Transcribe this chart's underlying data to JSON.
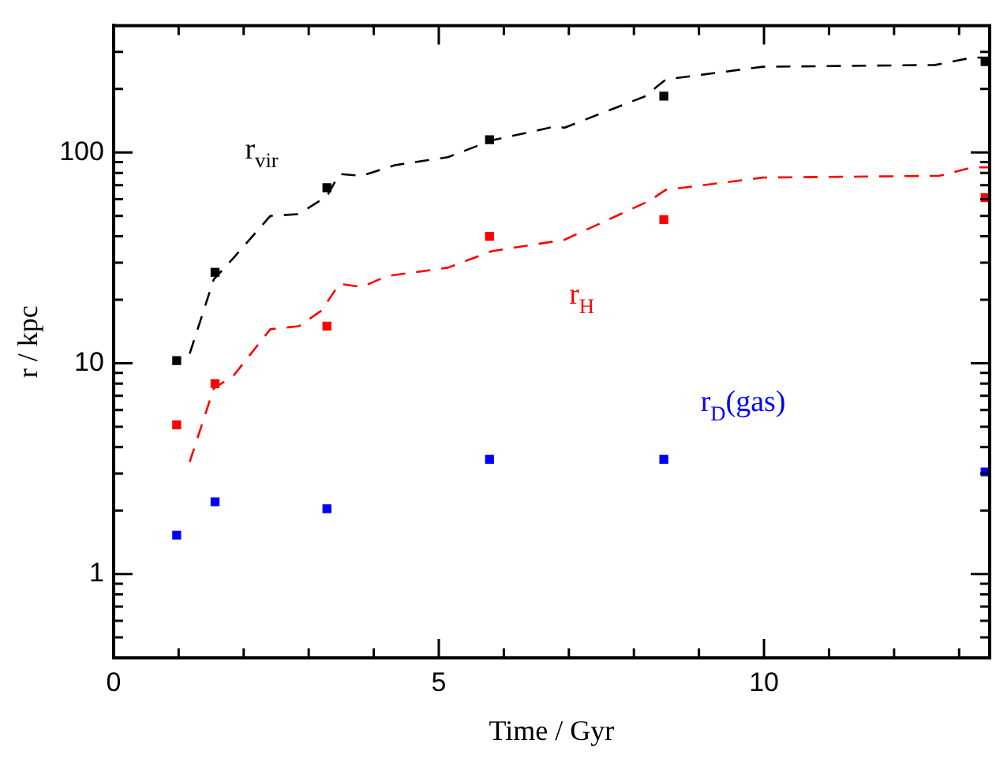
{
  "chart_data": {
    "type": "scatter",
    "xlabel": "Time / Gyr",
    "ylabel": "r / kpc",
    "log": "y",
    "grid": false,
    "legend": false,
    "xlim": [
      0,
      13.47
    ],
    "ylim": [
      0.4,
      400
    ],
    "xticks": [
      0,
      {
        "value": 1,
        "label": null
      },
      {
        "value": 2,
        "label": null
      },
      {
        "value": 3,
        "label": null
      },
      {
        "value": 4,
        "label": null
      },
      5,
      {
        "value": 6,
        "label": null
      },
      {
        "value": 7,
        "label": null
      },
      {
        "value": 8,
        "label": null
      },
      {
        "value": 9,
        "label": null
      },
      10,
      {
        "value": 11,
        "label": null
      },
      {
        "value": 12,
        "label": null
      },
      {
        "value": 13,
        "label": null
      }
    ],
    "yticks": [
      {
        "value": 0.5,
        "label": null
      },
      {
        "value": 0.6,
        "label": null
      },
      {
        "value": 0.7,
        "label": null
      },
      {
        "value": 0.8,
        "label": null
      },
      {
        "value": 0.9,
        "label": null
      },
      1,
      {
        "value": 2,
        "label": null
      },
      {
        "value": 3,
        "label": null
      },
      {
        "value": 4,
        "label": null
      },
      {
        "value": 5,
        "label": null
      },
      {
        "value": 6,
        "label": null
      },
      {
        "value": 7,
        "label": null
      },
      {
        "value": 8,
        "label": null
      },
      {
        "value": 9,
        "label": null
      },
      10,
      {
        "value": 20,
        "label": null
      },
      {
        "value": 30,
        "label": null
      },
      {
        "value": 40,
        "label": null
      },
      {
        "value": 50,
        "label": null
      },
      {
        "value": 60,
        "label": null
      },
      {
        "value": 70,
        "label": null
      },
      {
        "value": 80,
        "label": null
      },
      {
        "value": 90,
        "label": null
      },
      100,
      {
        "value": 200,
        "label": null
      },
      {
        "value": 300,
        "label": null
      }
    ],
    "x": [
      0.97,
      1.56,
      3.28,
      5.78,
      8.46,
      13.4
    ],
    "series": [
      {
        "type": "line",
        "color": "#000000",
        "line_style": "dashed",
        "marker": "none",
        "x": [
          1.17,
          1.54,
          1.84,
          2.41,
          2.85,
          3.28,
          3.47,
          3.82,
          4.32,
          5.14,
          5.81,
          6.8,
          6.93,
          8.16,
          8.49,
          9.98,
          12.63,
          13.2,
          13.47
        ],
        "values": [
          11.1,
          25,
          31.5,
          50,
          51,
          62,
          79,
          77.5,
          87,
          95,
          114,
          133,
          131,
          184,
          222,
          255,
          260,
          282,
          282
        ]
      },
      {
        "type": "line",
        "color": "#ff0000",
        "line_style": "dashed",
        "marker": "none",
        "x": [
          1.17,
          1.54,
          1.84,
          2.41,
          2.85,
          3.2,
          3.47,
          3.82,
          4.2,
          5.14,
          5.81,
          6.93,
          8.24,
          8.49,
          9.98,
          12.7,
          13.2,
          13.47
        ],
        "values": [
          3.4,
          7.6,
          8.7,
          14.5,
          15,
          17.8,
          23.8,
          23,
          25.9,
          28.4,
          34,
          38.5,
          59,
          66.5,
          76,
          77.5,
          85,
          85
        ]
      },
      {
        "color": "#000000",
        "marker": "square",
        "values": [
          10.3,
          27,
          68,
          115,
          185,
          270
        ]
      },
      {
        "color": "#ff0000",
        "marker": "square",
        "values": [
          5.1,
          8,
          15,
          40,
          48,
          61
        ]
      },
      {
        "color": "#0000ff",
        "marker": "square",
        "values": [
          1.53,
          2.2,
          2.04,
          3.5,
          3.5,
          3.05
        ]
      }
    ],
    "annotations": [
      "r$_{vir}$",
      "r$_{H}$",
      "r$_{D}$(gas)"
    ]
  }
}
